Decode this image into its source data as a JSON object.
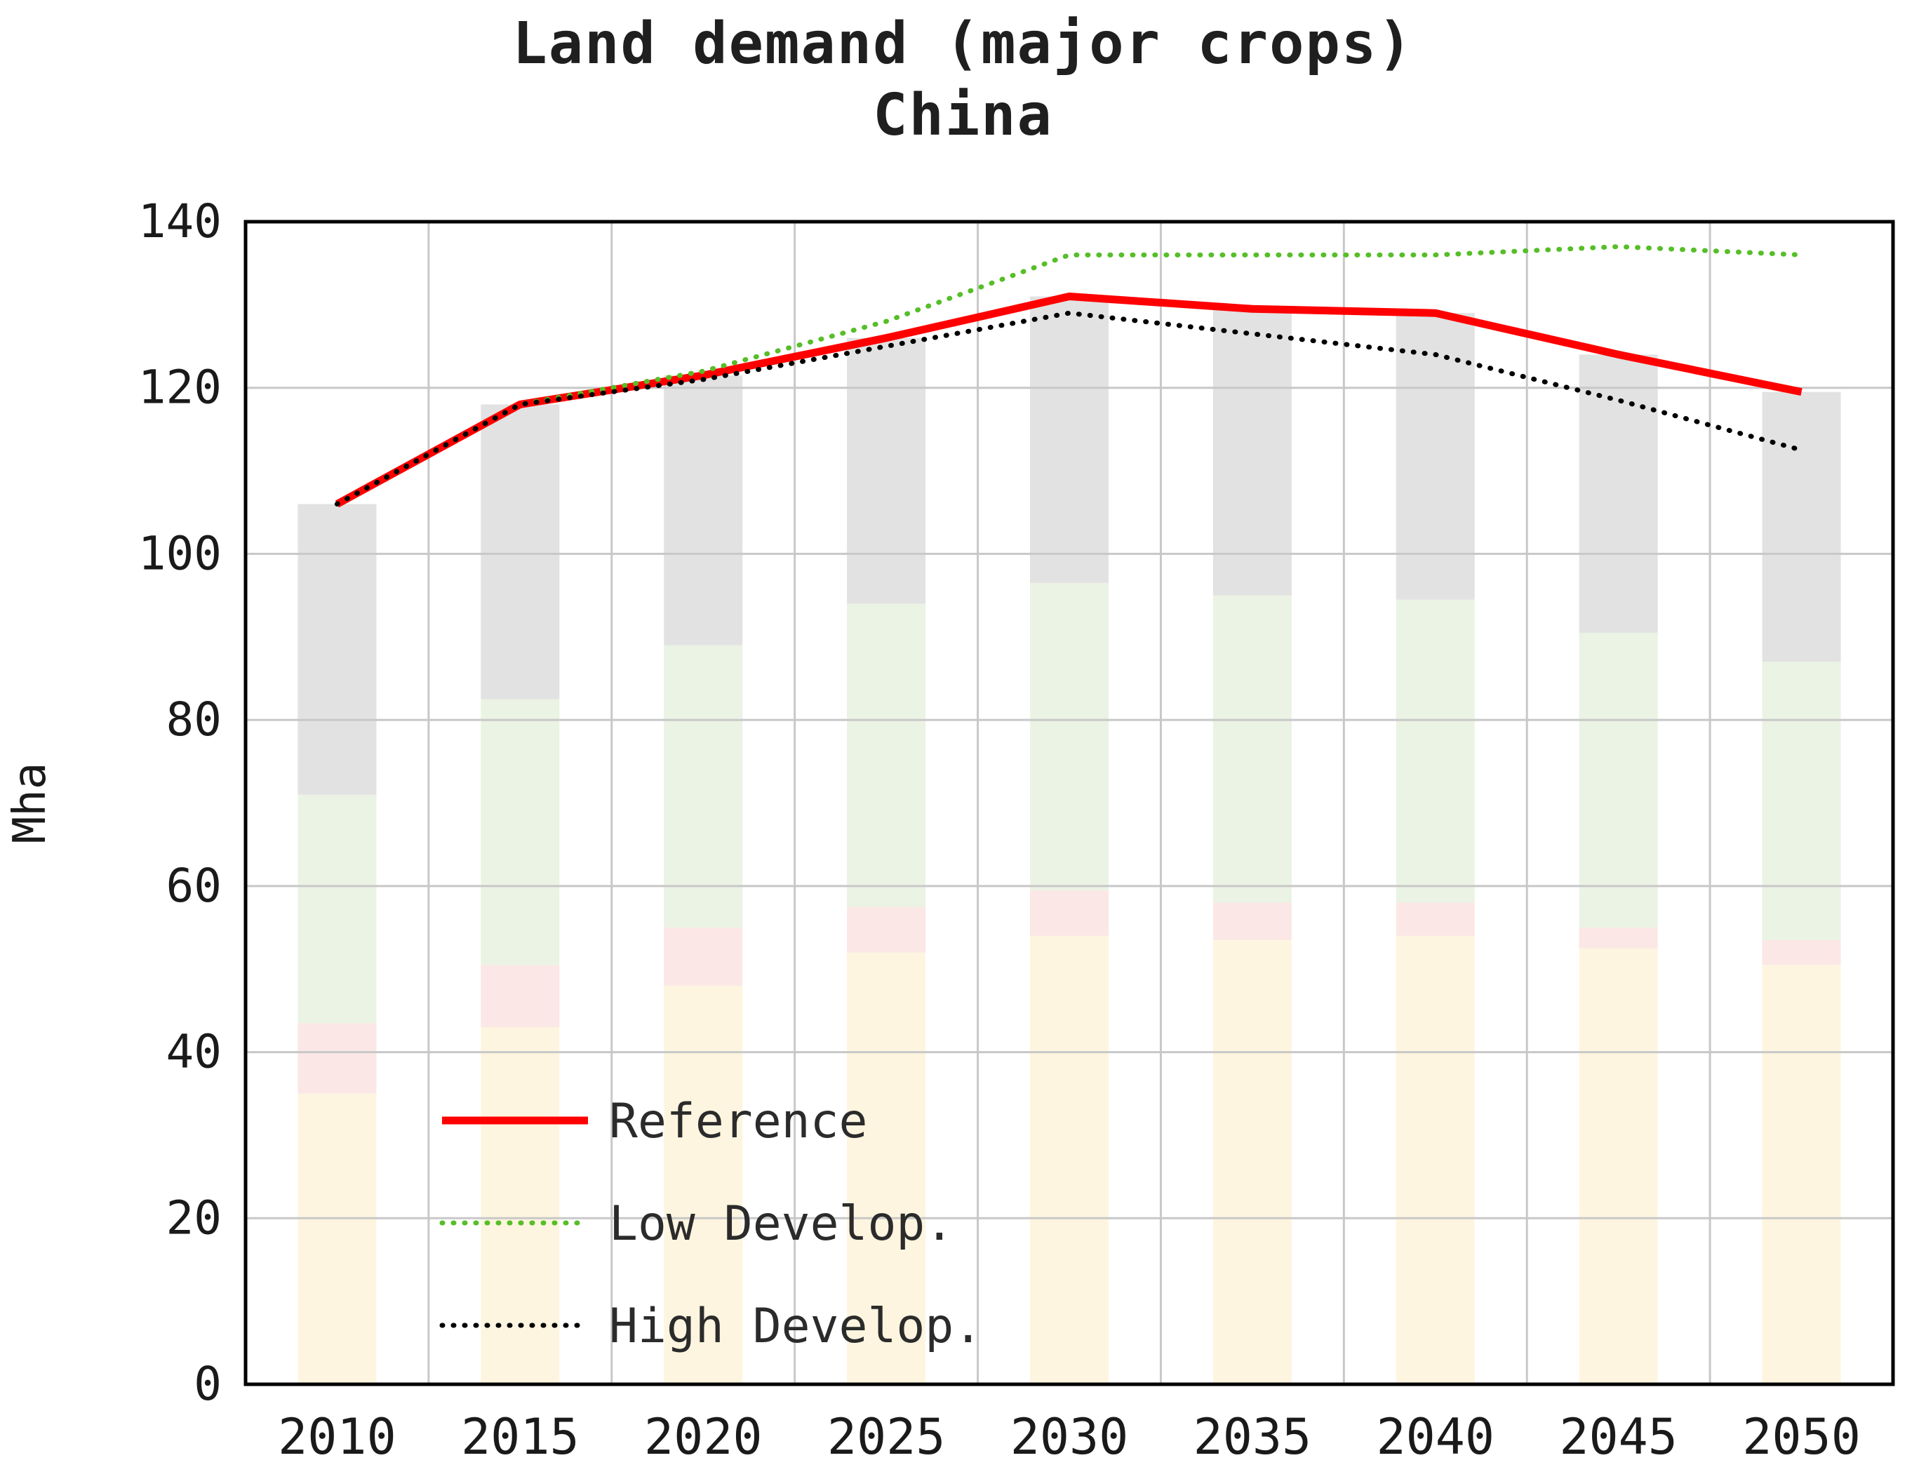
{
  "title": {
    "line1": "Land demand (major crops)",
    "line2": "China"
  },
  "chart_data": {
    "type": "line",
    "title": "Land demand (major crops) China",
    "ylabel": "Mha",
    "ylim": [
      0,
      140
    ],
    "yticks": [
      0,
      20,
      40,
      60,
      80,
      100,
      120,
      140
    ],
    "grid": "both",
    "legend_position": "inside-bottom-left",
    "categories": [
      "2010",
      "2015",
      "2020",
      "2025",
      "2030",
      "2035",
      "2040",
      "2045",
      "2050"
    ],
    "series": [
      {
        "name": "Reference",
        "style": "solid",
        "color": "#FF0000",
        "values": [
          106,
          118,
          121.5,
          126,
          131,
          129.5,
          129,
          124,
          119.5
        ]
      },
      {
        "name": "Low Develop.",
        "style": "dotted",
        "color": "#56BE27",
        "values": [
          106,
          118,
          122,
          128,
          136,
          136,
          136,
          137,
          136
        ]
      },
      {
        "name": "High Develop.",
        "style": "dotted",
        "color": "#000000",
        "values": [
          106,
          118,
          121,
          125,
          129,
          126.5,
          124,
          118.5,
          112.5
        ]
      }
    ],
    "background_stacked_bars": {
      "segments": [
        {
          "name": "cream",
          "color": "#FDF5DF",
          "values": [
            35,
            43,
            48,
            52,
            54,
            53.5,
            54,
            52.5,
            50.5
          ]
        },
        {
          "name": "pink",
          "color": "#FBE7E5",
          "values": [
            8.5,
            7.5,
            7,
            5.5,
            5.5,
            4.5,
            4,
            2.5,
            3
          ]
        },
        {
          "name": "green",
          "color": "#EBF3E4",
          "values": [
            27.5,
            32,
            34,
            36.5,
            37,
            37,
            36.5,
            35.5,
            33.5
          ]
        },
        {
          "name": "gray",
          "color": "#E2E2E2",
          "values": [
            35,
            35.5,
            32.5,
            32,
            34.5,
            34.5,
            34.5,
            33.5,
            32.5
          ]
        }
      ]
    },
    "colors": {
      "gridline": "#C8C8C8",
      "plot_border": "#000000",
      "tick_text": "#1a1a1a",
      "legend_text": "#2b2b2b"
    }
  }
}
